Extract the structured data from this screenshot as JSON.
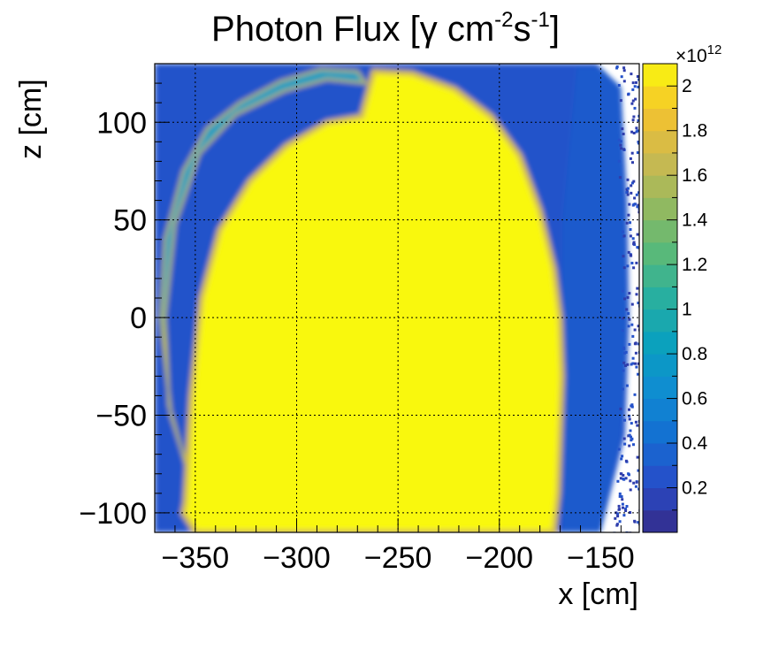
{
  "chart_data": {
    "type": "heatmap",
    "title_parts": {
      "main": "Photon Flux [γ cm",
      "sup1": "-2",
      "mid": "s",
      "sup2": "-1",
      "end": "]"
    },
    "xlabel": "x [cm]",
    "ylabel": "z [cm]",
    "xlim": [
      -370,
      -131
    ],
    "ylim": [
      -110,
      130
    ],
    "x_ticks": [
      -350,
      -300,
      -250,
      -200,
      -150
    ],
    "x_tick_labels": [
      "−350",
      "−300",
      "−250",
      "−200",
      "−150"
    ],
    "y_ticks": [
      -100,
      -50,
      0,
      50,
      100
    ],
    "y_tick_labels": [
      "−100",
      "−50",
      "0",
      "50",
      "100"
    ],
    "grid": true,
    "colorbar": {
      "range": [
        0,
        2.1
      ],
      "scale_label": "×10",
      "scale_exponent": "12",
      "ticks": [
        0.2,
        0.4,
        0.6,
        0.8,
        1,
        1.2,
        1.4,
        1.6,
        1.8,
        2
      ],
      "tick_labels": [
        "0.2",
        "0.4",
        "0.6",
        "0.8",
        "1",
        "1.2",
        "1.4",
        "1.6",
        "1.8",
        "2"
      ]
    },
    "regions": [
      {
        "name": "saturated central region",
        "value": 2.1,
        "outline_x": [
          -355,
          -352,
          -347,
          -338,
          -323,
          -305,
          -285,
          -268,
          -262,
          -243,
          -222,
          -204,
          -190,
          -180,
          -173,
          -170,
          -169,
          -170,
          -171,
          -173,
          -350,
          -356
        ],
        "outline_z": [
          -95,
          -40,
          10,
          45,
          70,
          88,
          100,
          103,
          126,
          125,
          117,
          103,
          83,
          55,
          25,
          0,
          -30,
          -60,
          -90,
          -110,
          -110,
          -100
        ]
      },
      {
        "name": "outer arc band",
        "value": 0.8,
        "outline_x": [
          -362,
          -367,
          -365,
          -356,
          -344,
          -328,
          -308,
          -288,
          -270,
          -266,
          -285,
          -306,
          -330,
          -348,
          -360,
          -365,
          -363,
          -352,
          -340,
          -316,
          -344
        ],
        "outline_z": [
          -50,
          0,
          40,
          75,
          97,
          110,
          121,
          127,
          126,
          120,
          122,
          116,
          104,
          84,
          48,
          0,
          -45,
          -85,
          -100,
          -110,
          -110
        ]
      },
      {
        "name": "right falloff",
        "value": 0.3,
        "outline_x": [
          -169,
          -150,
          -140,
          -137,
          -138,
          -140,
          -150,
          -162,
          -169
        ],
        "outline_z": [
          -110,
          -110,
          -60,
          0,
          60,
          118,
          128,
          128,
          50
        ]
      }
    ]
  }
}
